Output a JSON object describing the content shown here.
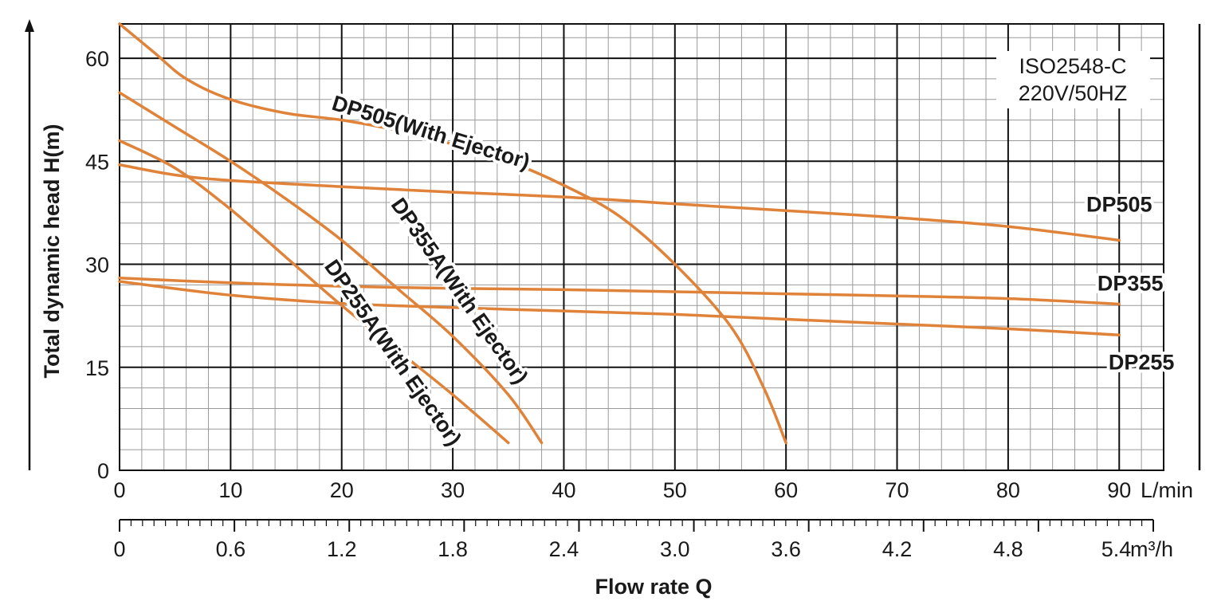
{
  "chart_data": {
    "type": "line",
    "notes": [
      "ISO2548-C",
      "220V/50HZ"
    ],
    "ylabel": "Total dynamic head H(m)",
    "xlabel": "Flow rate Q",
    "y_ticks": [
      "0",
      "15",
      "30",
      "45",
      "60"
    ],
    "ylim": [
      0,
      65
    ],
    "x_ticks_lmin": [
      "0",
      "10",
      "20",
      "30",
      "40",
      "50",
      "60",
      "70",
      "80",
      "90"
    ],
    "x_unit_lmin": "L/min",
    "xlim": [
      0,
      94
    ],
    "x_ticks_m3h": [
      "0",
      "0.6",
      "1.2",
      "1.8",
      "2.4",
      "3.0",
      "3.6",
      "4.2",
      "4.8",
      "5.4"
    ],
    "x_unit_m3h": "m³/h",
    "grid": true,
    "series": [
      {
        "name": "DP505(With Ejector)",
        "x": [
          0,
          3,
          6,
          10,
          15,
          20,
          25,
          30,
          35,
          40,
          45,
          50,
          55,
          58,
          60
        ],
        "y": [
          65,
          61,
          57,
          54,
          52,
          51,
          49.5,
          47.5,
          45,
          41.5,
          37,
          30,
          21,
          12,
          4
        ]
      },
      {
        "name": "DP505",
        "x": [
          0,
          5,
          10,
          20,
          30,
          40,
          50,
          60,
          70,
          80,
          90
        ],
        "y": [
          44.5,
          43,
          42.2,
          41.3,
          40.5,
          39.8,
          38.8,
          37.8,
          36.8,
          35.5,
          33.5
        ]
      },
      {
        "name": "DP355",
        "x": [
          0,
          10,
          20,
          30,
          40,
          50,
          60,
          70,
          80,
          90
        ],
        "y": [
          28,
          27.3,
          26.8,
          26.5,
          26.3,
          26,
          25.7,
          25.4,
          25,
          24.2
        ]
      },
      {
        "name": "DP255",
        "x": [
          0,
          10,
          20,
          30,
          40,
          50,
          60,
          70,
          80,
          90
        ],
        "y": [
          27.5,
          25.5,
          24.3,
          23.7,
          23.2,
          22.7,
          22,
          21.3,
          20.6,
          19.7
        ]
      },
      {
        "name": "DP355A(With Ejector)",
        "x": [
          0,
          5,
          10,
          15,
          20,
          25,
          30,
          35,
          38
        ],
        "y": [
          55,
          50,
          45,
          39.5,
          33.5,
          26.5,
          19.5,
          11,
          4
        ]
      },
      {
        "name": "DP255A(With Ejector)",
        "x": [
          0,
          5,
          10,
          15,
          20,
          25,
          30,
          35
        ],
        "y": [
          48,
          44,
          38,
          31,
          24,
          17.5,
          11,
          4
        ]
      }
    ],
    "labels": [
      {
        "text": "DP505(With Ejector)",
        "at": [
          28,
          49
        ],
        "angle": 17
      },
      {
        "text": "DP505",
        "at": [
          90,
          38.5
        ],
        "angle": 0
      },
      {
        "text": "DP355",
        "at": [
          91,
          27
        ],
        "angle": 0
      },
      {
        "text": "DP255",
        "at": [
          92,
          15.5
        ],
        "angle": 0
      },
      {
        "text": "DP355A(With Ejector)",
        "at": [
          30.5,
          26
        ],
        "angle": 55
      },
      {
        "text": "DP255A(With Ejector)",
        "at": [
          24.5,
          17
        ],
        "angle": 55
      }
    ],
    "color": "#e0833a"
  }
}
